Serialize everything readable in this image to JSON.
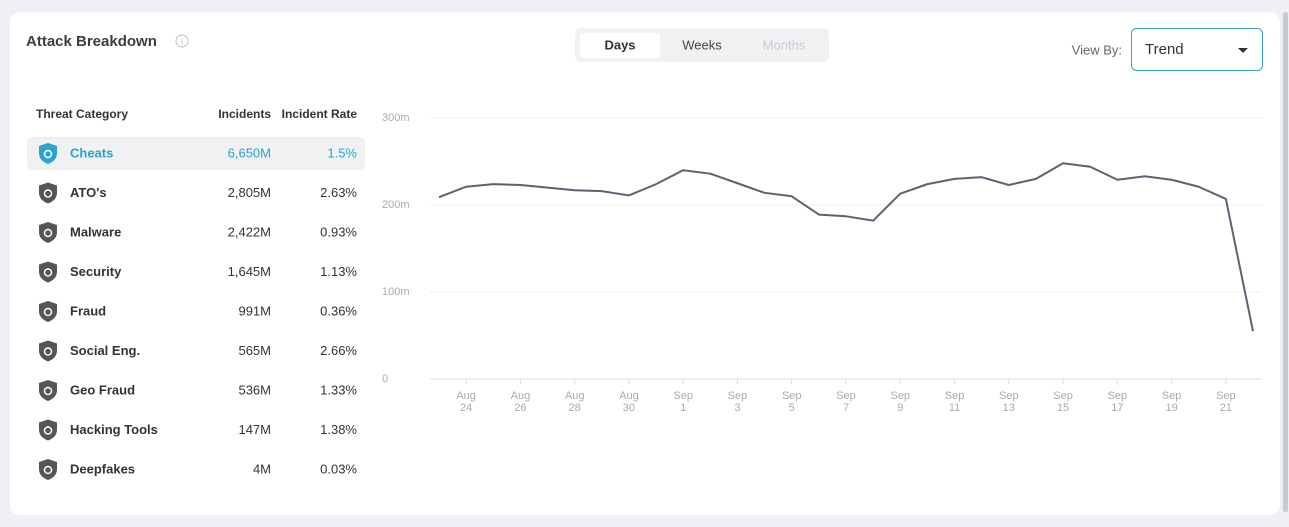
{
  "header": {
    "title": "Attack Breakdown"
  },
  "tabs": [
    "Days",
    "Weeks",
    "Months"
  ],
  "view_by": {
    "label": "View By:",
    "value": "Trend"
  },
  "table": {
    "columns": [
      "Threat Category",
      "Incidents",
      "Incident Rate"
    ],
    "rows": [
      [
        "Cheats",
        "6,650M",
        "1.5%"
      ],
      [
        "ATO's",
        "2,805M",
        "2.63%"
      ],
      [
        "Malware",
        "2,422M",
        "0.93%"
      ],
      [
        "Security",
        "1,645M",
        "1.13%"
      ],
      [
        "Fraud",
        "991M",
        "0.36%"
      ],
      [
        "Social Eng.",
        "565M",
        "2.66%"
      ],
      [
        "Geo Fraud",
        "536M",
        "1.33%"
      ],
      [
        "Hacking Tools",
        "147M",
        "1.38%"
      ],
      [
        "Deepfakes",
        "4M",
        "0.03%"
      ]
    ]
  },
  "chart_data": {
    "type": "line",
    "categories": [
      null,
      "Aug 24",
      null,
      "Aug 26",
      null,
      "Aug 28",
      null,
      "Aug 30",
      null,
      "Sep 1",
      null,
      "Sep 3",
      null,
      "Sep 5",
      null,
      "Sep 7",
      null,
      "Sep 9",
      null,
      "Sep 11",
      null,
      "Sep 13",
      null,
      "Sep 15",
      null,
      "Sep 17",
      null,
      "Sep 19",
      null,
      "Sep 21",
      null
    ],
    "values": [
      209,
      221,
      224,
      223,
      220,
      217,
      216,
      211,
      224,
      240,
      236,
      225,
      214,
      210,
      189,
      187,
      182,
      213,
      224,
      230,
      232,
      223,
      230,
      248,
      244,
      229,
      233,
      229,
      221,
      207,
      55
    ],
    "color": "#5b6270",
    "ylim": [
      0,
      300
    ],
    "yticks": [
      0,
      {
        "value": 100,
        "label": "100m"
      },
      {
        "value": 200,
        "label": "200m"
      },
      {
        "value": 300,
        "label": "300m"
      }
    ],
    "grid": true
  }
}
